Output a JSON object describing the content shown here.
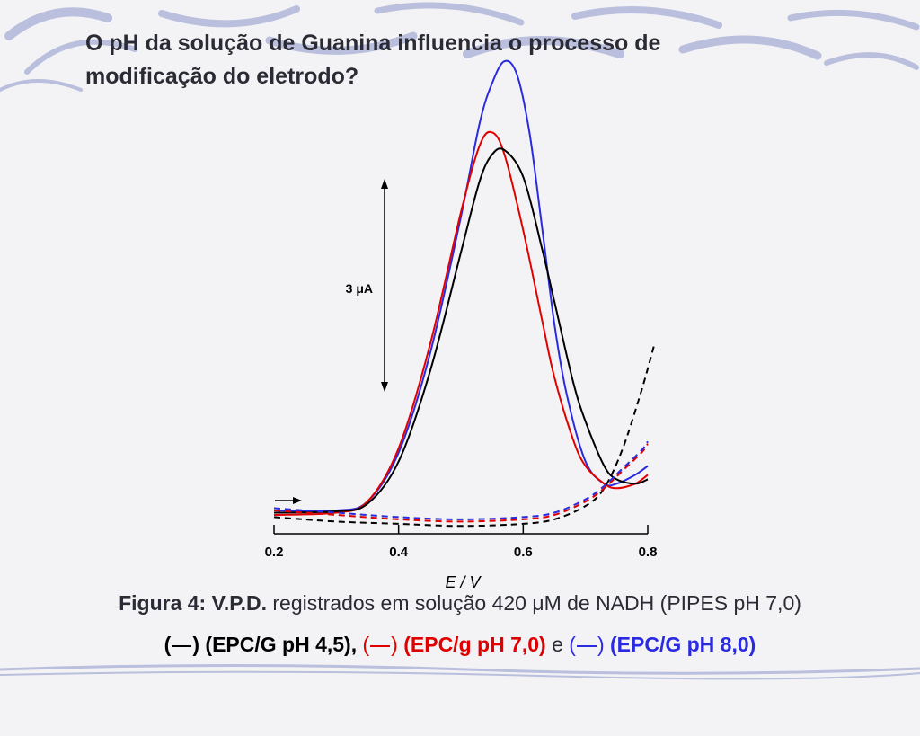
{
  "slide": {
    "title_line1": "O pH da solução de Guanina influencia o processo de",
    "title_line2": "modificação do eletrodo?",
    "colors": {
      "background": "#f3f3f5",
      "decor": "#b9bfdc",
      "text": "#2b2b35"
    }
  },
  "caption": {
    "lead": "Figura 4:",
    "method": " V.P.D.",
    "text": " registrados em solução 420 μM de NADH (PIPES pH 7,0)",
    "open1": "(",
    "close1": ")",
    "label1": " (EPC/G pH 4,5),",
    "open2": " (",
    "close2": ")",
    "label2": " (EPC/g pH 7,0)",
    "joiner": " e ",
    "open3": "(",
    "close3": ")",
    "label3": " (EPC/G pH 8,0)"
  },
  "chart_data": {
    "type": "line",
    "xlabel": "E / V",
    "ylabel": "",
    "xlim": [
      0.2,
      0.8
    ],
    "x_ticks": [
      "0.2",
      "0.4",
      "0.6",
      "0.8"
    ],
    "scale_bar": {
      "label": "3 μA",
      "value_uA": 3
    },
    "grid": false,
    "series": [
      {
        "color": "#2a2ae0",
        "style": "solid",
        "x": [
          0.2,
          0.3,
          0.35,
          0.4,
          0.45,
          0.5,
          0.53,
          0.55,
          0.57,
          0.59,
          0.61,
          0.63,
          0.65,
          0.67,
          0.7,
          0.73,
          0.75,
          0.78,
          0.8
        ],
        "y": [
          0.0,
          0.0,
          0.2,
          1.3,
          3.5,
          6.6,
          8.7,
          9.6,
          10.1,
          9.8,
          8.5,
          6.4,
          4.2,
          2.6,
          1.1,
          0.6,
          0.6,
          0.8,
          1.0
        ]
      },
      {
        "color": "#e00000",
        "style": "solid",
        "x": [
          0.2,
          0.3,
          0.35,
          0.4,
          0.45,
          0.5,
          0.53,
          0.55,
          0.57,
          0.6,
          0.63,
          0.65,
          0.68,
          0.7,
          0.73,
          0.75,
          0.78,
          0.8
        ],
        "y": [
          -0.1,
          -0.05,
          0.2,
          1.4,
          3.7,
          6.7,
          8.2,
          8.5,
          8.0,
          6.3,
          4.3,
          3.0,
          1.6,
          1.0,
          0.6,
          0.5,
          0.6,
          0.8
        ]
      },
      {
        "color": "#000000",
        "style": "solid",
        "x": [
          0.2,
          0.3,
          0.35,
          0.4,
          0.45,
          0.5,
          0.53,
          0.55,
          0.57,
          0.6,
          0.63,
          0.65,
          0.68,
          0.7,
          0.73,
          0.75,
          0.78,
          0.8
        ],
        "y": [
          -0.05,
          -0.02,
          0.15,
          1.1,
          3.1,
          5.8,
          7.4,
          8.0,
          8.1,
          7.5,
          5.9,
          4.7,
          2.9,
          2.0,
          1.0,
          0.7,
          0.6,
          0.7
        ]
      },
      {
        "color": "#000000",
        "style": "dashed",
        "x": [
          0.2,
          0.3,
          0.4,
          0.5,
          0.6,
          0.65,
          0.7,
          0.73,
          0.76,
          0.79,
          0.81
        ],
        "y": [
          -0.15,
          -0.25,
          -0.3,
          -0.35,
          -0.3,
          -0.2,
          0.1,
          0.5,
          1.4,
          2.7,
          3.7
        ]
      },
      {
        "color": "#e00000",
        "style": "dashed",
        "x": [
          0.2,
          0.3,
          0.4,
          0.5,
          0.6,
          0.65,
          0.7,
          0.73,
          0.76,
          0.79,
          0.8
        ],
        "y": [
          0.0,
          -0.1,
          -0.2,
          -0.25,
          -0.2,
          -0.1,
          0.2,
          0.5,
          0.9,
          1.3,
          1.5
        ]
      },
      {
        "color": "#2a2ae0",
        "style": "dashed",
        "x": [
          0.2,
          0.3,
          0.4,
          0.5,
          0.6,
          0.65,
          0.7,
          0.73,
          0.76,
          0.79,
          0.8
        ],
        "y": [
          0.05,
          -0.05,
          -0.15,
          -0.2,
          -0.15,
          -0.05,
          0.25,
          0.55,
          0.95,
          1.35,
          1.55
        ]
      }
    ]
  }
}
